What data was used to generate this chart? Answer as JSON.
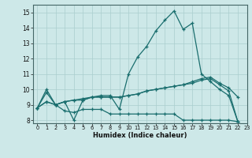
{
  "xlabel": "Humidex (Indice chaleur)",
  "xlim": [
    -0.5,
    23.0
  ],
  "ylim": [
    7.8,
    15.5
  ],
  "yticks": [
    8,
    9,
    10,
    11,
    12,
    13,
    14,
    15
  ],
  "xticks": [
    0,
    1,
    2,
    3,
    4,
    5,
    6,
    7,
    8,
    9,
    10,
    11,
    12,
    13,
    14,
    15,
    16,
    17,
    18,
    19,
    20,
    21,
    22,
    23
  ],
  "bg_color": "#cde8e8",
  "line_color": "#1a6e6e",
  "grid_color": "#aacece",
  "lines": [
    {
      "x": [
        0,
        1,
        2,
        3,
        4,
        5,
        6,
        7,
        8,
        9,
        10,
        11,
        12,
        13,
        14,
        15,
        16,
        17,
        18,
        19,
        20,
        21,
        22
      ],
      "y": [
        8.8,
        10.0,
        9.0,
        9.2,
        8.0,
        9.3,
        9.5,
        9.6,
        9.6,
        8.7,
        11.0,
        12.1,
        12.8,
        13.8,
        14.5,
        15.1,
        13.9,
        14.3,
        11.0,
        10.5,
        10.0,
        9.6,
        7.9
      ]
    },
    {
      "x": [
        0,
        1,
        2,
        3,
        4,
        5,
        6,
        7,
        8,
        9,
        10,
        11,
        12,
        13,
        14,
        15,
        16,
        17,
        18,
        19,
        20,
        21,
        22
      ],
      "y": [
        8.8,
        9.8,
        9.0,
        8.6,
        8.5,
        8.7,
        8.7,
        8.7,
        8.4,
        8.4,
        8.4,
        8.4,
        8.4,
        8.4,
        8.4,
        8.4,
        8.0,
        8.0,
        8.0,
        8.0,
        8.0,
        8.0,
        7.9
      ]
    },
    {
      "x": [
        0,
        1,
        2,
        3,
        4,
        5,
        6,
        7,
        8,
        9,
        10,
        11,
        12,
        13,
        14,
        15,
        16,
        17,
        18,
        19,
        20,
        21,
        22
      ],
      "y": [
        8.8,
        9.2,
        9.0,
        9.2,
        9.3,
        9.3,
        9.5,
        9.5,
        9.5,
        9.5,
        9.6,
        9.7,
        9.9,
        10.0,
        10.1,
        10.2,
        10.3,
        10.5,
        10.7,
        10.8,
        10.4,
        10.1,
        9.5
      ]
    },
    {
      "x": [
        0,
        1,
        2,
        3,
        4,
        5,
        6,
        7,
        8,
        9,
        10,
        11,
        12,
        13,
        14,
        15,
        16,
        17,
        18,
        19,
        20,
        21,
        22
      ],
      "y": [
        8.8,
        9.2,
        9.0,
        9.2,
        9.3,
        9.4,
        9.5,
        9.5,
        9.5,
        9.5,
        9.6,
        9.7,
        9.9,
        10.0,
        10.1,
        10.2,
        10.3,
        10.4,
        10.6,
        10.7,
        10.3,
        9.9,
        7.9
      ]
    }
  ]
}
